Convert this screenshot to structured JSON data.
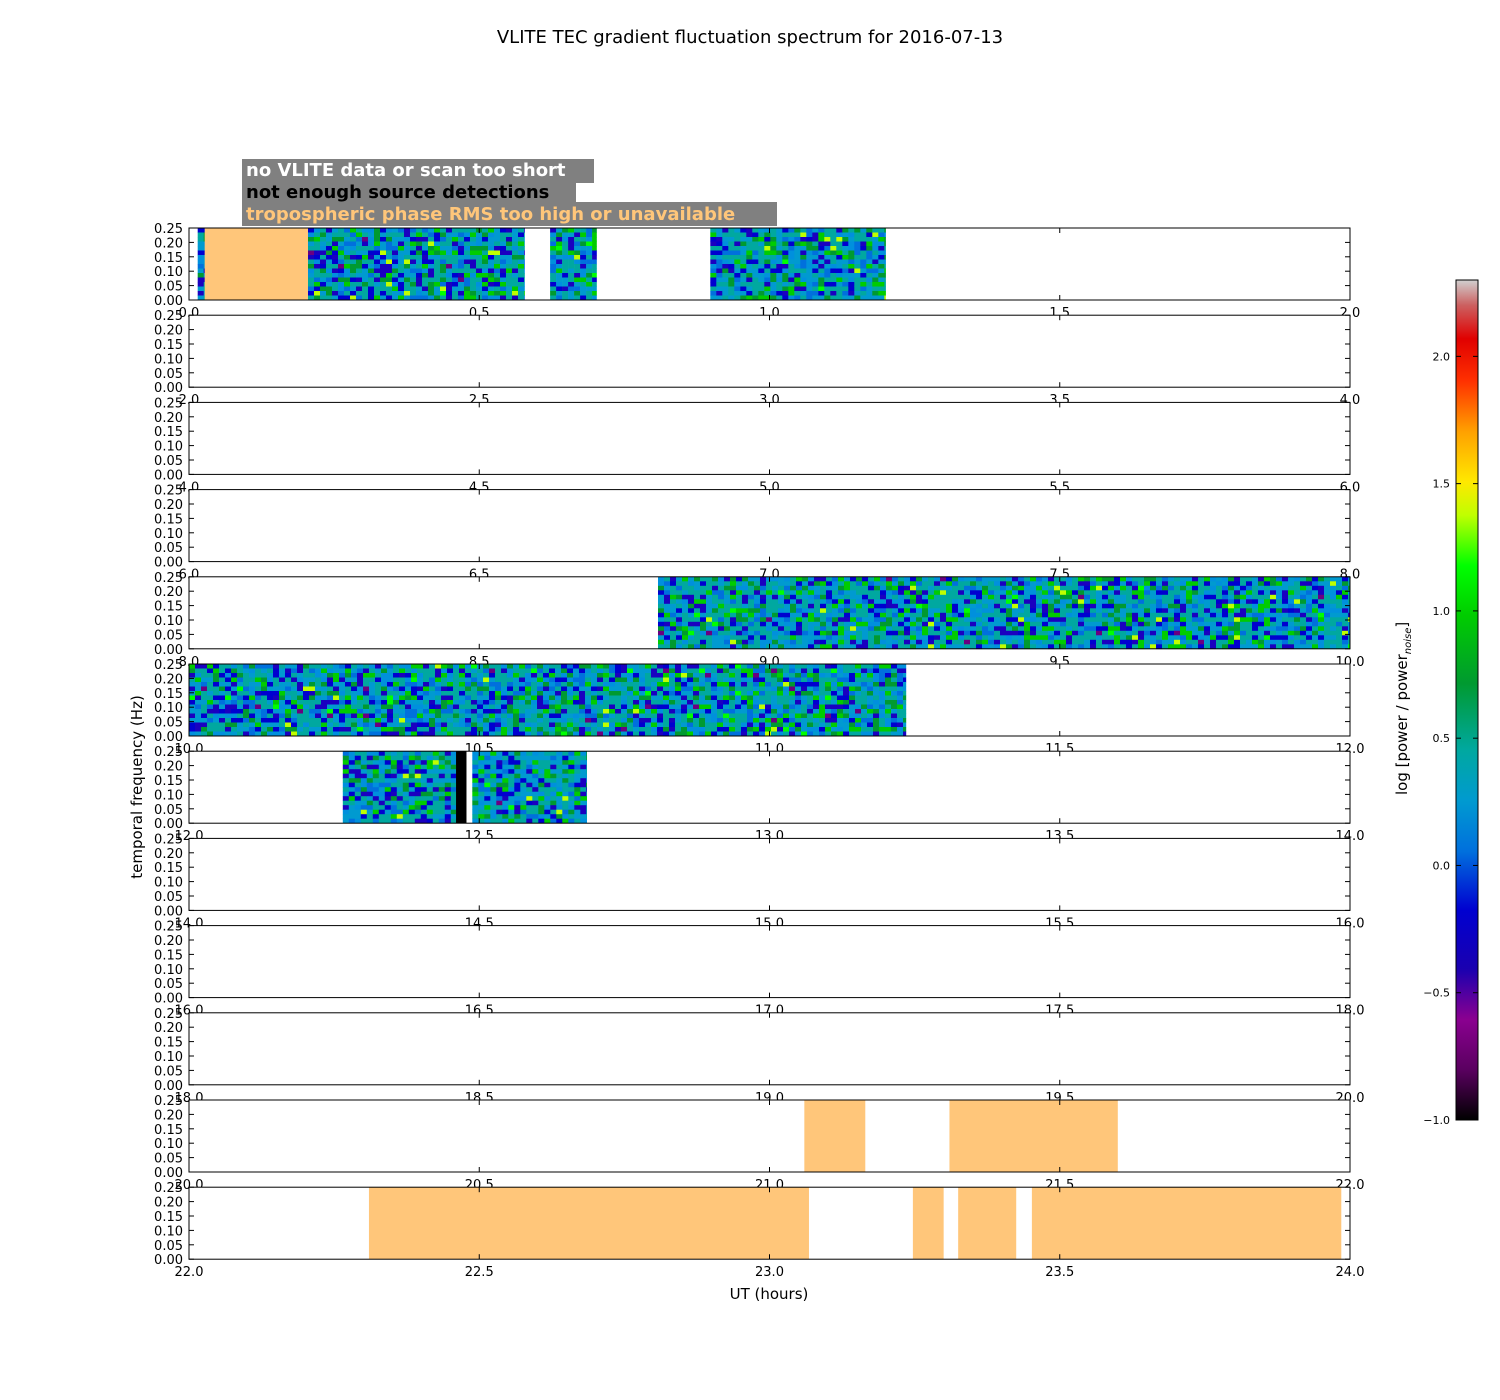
{
  "chart_data": {
    "type": "heatmap",
    "title": "VLITE TEC gradient fluctuation spectrum for 2016-07-13",
    "xlabel": "UT (hours)",
    "ylabel": "temporal frequency (Hz)",
    "ylim": [
      0.0,
      0.25
    ],
    "yticks": [
      "0.00",
      "0.05",
      "0.10",
      "0.15",
      "0.20",
      "0.25"
    ],
    "legend": {
      "placement": "top-left",
      "entries": [
        {
          "label": "no VLITE data or scan too short",
          "color": "#ffffff"
        },
        {
          "label": "not enough source detections",
          "color": "#000000"
        },
        {
          "label": "tropospheric phase RMS too high or unavailable",
          "color": "#ffc67a"
        }
      ],
      "background": "#808080"
    },
    "colorbar": {
      "label": "log [power / power",
      "label_sub": "noise",
      "label_end": "]",
      "range": [
        -1.0,
        2.3
      ],
      "ticks": [
        "2.0",
        "1.5",
        "1.0",
        "0.5",
        "0.0",
        "−0.5",
        "−1.0"
      ],
      "tick_values": [
        2.0,
        1.5,
        1.0,
        0.5,
        0.0,
        -0.5,
        -1.0
      ]
    },
    "panels": [
      {
        "xlim": [
          0.0,
          2.0
        ],
        "xticks": [
          "0.0",
          "0.5",
          "1.0",
          "1.5",
          "2.0"
        ],
        "segments": [
          {
            "kind": "spectrum",
            "start": 0.015,
            "end": 0.027
          },
          {
            "kind": "troposphere",
            "start": 0.027,
            "end": 0.205
          },
          {
            "kind": "spectrum",
            "start": 0.205,
            "end": 0.578
          },
          {
            "kind": "spectrum",
            "start": 0.622,
            "end": 0.702
          },
          {
            "kind": "spectrum",
            "start": 0.898,
            "end": 1.2
          }
        ]
      },
      {
        "xlim": [
          2.0,
          4.0
        ],
        "xticks": [
          "2.0",
          "2.5",
          "3.0",
          "3.5",
          "4.0"
        ],
        "segments": []
      },
      {
        "xlim": [
          4.0,
          6.0
        ],
        "xticks": [
          "4.0",
          "4.5",
          "5.0",
          "5.5",
          "6.0"
        ],
        "segments": []
      },
      {
        "xlim": [
          6.0,
          8.0
        ],
        "xticks": [
          "6.0",
          "6.5",
          "7.0",
          "7.5",
          "8.0"
        ],
        "segments": []
      },
      {
        "xlim": [
          8.0,
          10.0
        ],
        "xticks": [
          "8.0",
          "8.5",
          "9.0",
          "9.5",
          "10.0"
        ],
        "segments": [
          {
            "kind": "spectrum",
            "start": 8.808,
            "end": 10.0
          }
        ]
      },
      {
        "xlim": [
          10.0,
          12.0
        ],
        "xticks": [
          "10.0",
          "10.5",
          "11.0",
          "11.5",
          "12.0"
        ],
        "segments": [
          {
            "kind": "spectrum",
            "start": 10.0,
            "end": 11.235
          }
        ]
      },
      {
        "xlim": [
          12.0,
          14.0
        ],
        "xticks": [
          "12.0",
          "12.5",
          "13.0",
          "13.5",
          "14.0"
        ],
        "segments": [
          {
            "kind": "spectrum",
            "start": 12.265,
            "end": 12.46
          },
          {
            "kind": "no-detections",
            "start": 12.46,
            "end": 12.478
          },
          {
            "kind": "spectrum",
            "start": 12.488,
            "end": 12.685
          }
        ]
      },
      {
        "xlim": [
          14.0,
          16.0
        ],
        "xticks": [
          "14.0",
          "14.5",
          "15.0",
          "15.5",
          "16.0"
        ],
        "segments": []
      },
      {
        "xlim": [
          16.0,
          18.0
        ],
        "xticks": [
          "16.0",
          "16.5",
          "17.0",
          "17.5",
          "18.0"
        ],
        "segments": []
      },
      {
        "xlim": [
          18.0,
          20.0
        ],
        "xticks": [
          "18.0",
          "18.5",
          "19.0",
          "19.5",
          "20.0"
        ],
        "segments": []
      },
      {
        "xlim": [
          20.0,
          22.0
        ],
        "xticks": [
          "20.0",
          "20.5",
          "21.0",
          "21.5",
          "22.0"
        ],
        "segments": [
          {
            "kind": "troposphere",
            "start": 21.06,
            "end": 21.165
          },
          {
            "kind": "troposphere",
            "start": 21.31,
            "end": 21.6
          }
        ]
      },
      {
        "xlim": [
          22.0,
          24.0
        ],
        "xticks": [
          "22.0",
          "22.5",
          "23.0",
          "23.5",
          "24.0"
        ],
        "segments": [
          {
            "kind": "troposphere",
            "start": 22.31,
            "end": 23.068
          },
          {
            "kind": "troposphere",
            "start": 23.247,
            "end": 23.3
          },
          {
            "kind": "troposphere",
            "start": 23.325,
            "end": 23.425
          },
          {
            "kind": "troposphere",
            "start": 23.452,
            "end": 23.985
          }
        ]
      }
    ]
  }
}
